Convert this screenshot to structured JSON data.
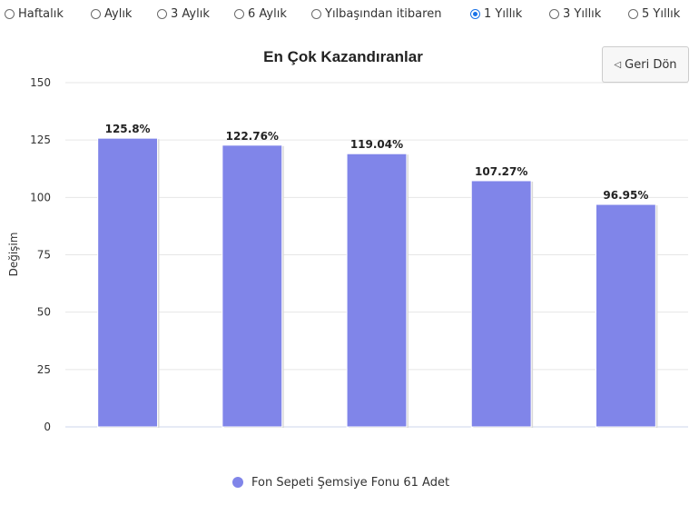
{
  "period_options": [
    {
      "label": "Haftalık",
      "checked": false
    },
    {
      "label": "Aylık",
      "checked": false
    },
    {
      "label": "3 Aylık",
      "checked": false
    },
    {
      "label": "6 Aylık",
      "checked": false
    },
    {
      "label": "Yılbaşından itibaren",
      "checked": false
    },
    {
      "label": "1 Yıllık",
      "checked": true
    },
    {
      "label": "3 Yıllık",
      "checked": false
    },
    {
      "label": "5 Yıllık",
      "checked": false
    }
  ],
  "back_button": {
    "label": "Geri Dön",
    "icon": "left-triangle-icon"
  },
  "chart_data": {
    "type": "bar",
    "title": "En Çok Kazandıranlar",
    "ylabel": "Değişim",
    "xlabel": "",
    "ylim": [
      0,
      150
    ],
    "yticks": [
      0,
      25,
      50,
      75,
      100,
      125,
      150
    ],
    "categories": [
      "",
      "",
      "",
      "",
      ""
    ],
    "series": [
      {
        "name": "Fon Sepeti Şemsiye Fonu 61 Adet",
        "color": "#8085e9",
        "values": [
          125.8,
          122.76,
          119.04,
          107.27,
          96.95
        ],
        "data_labels": [
          "125.8%",
          "122.76%",
          "119.04%",
          "107.27%",
          "96.95%"
        ]
      }
    ],
    "grid": true,
    "legend_position": "bottom-center"
  }
}
